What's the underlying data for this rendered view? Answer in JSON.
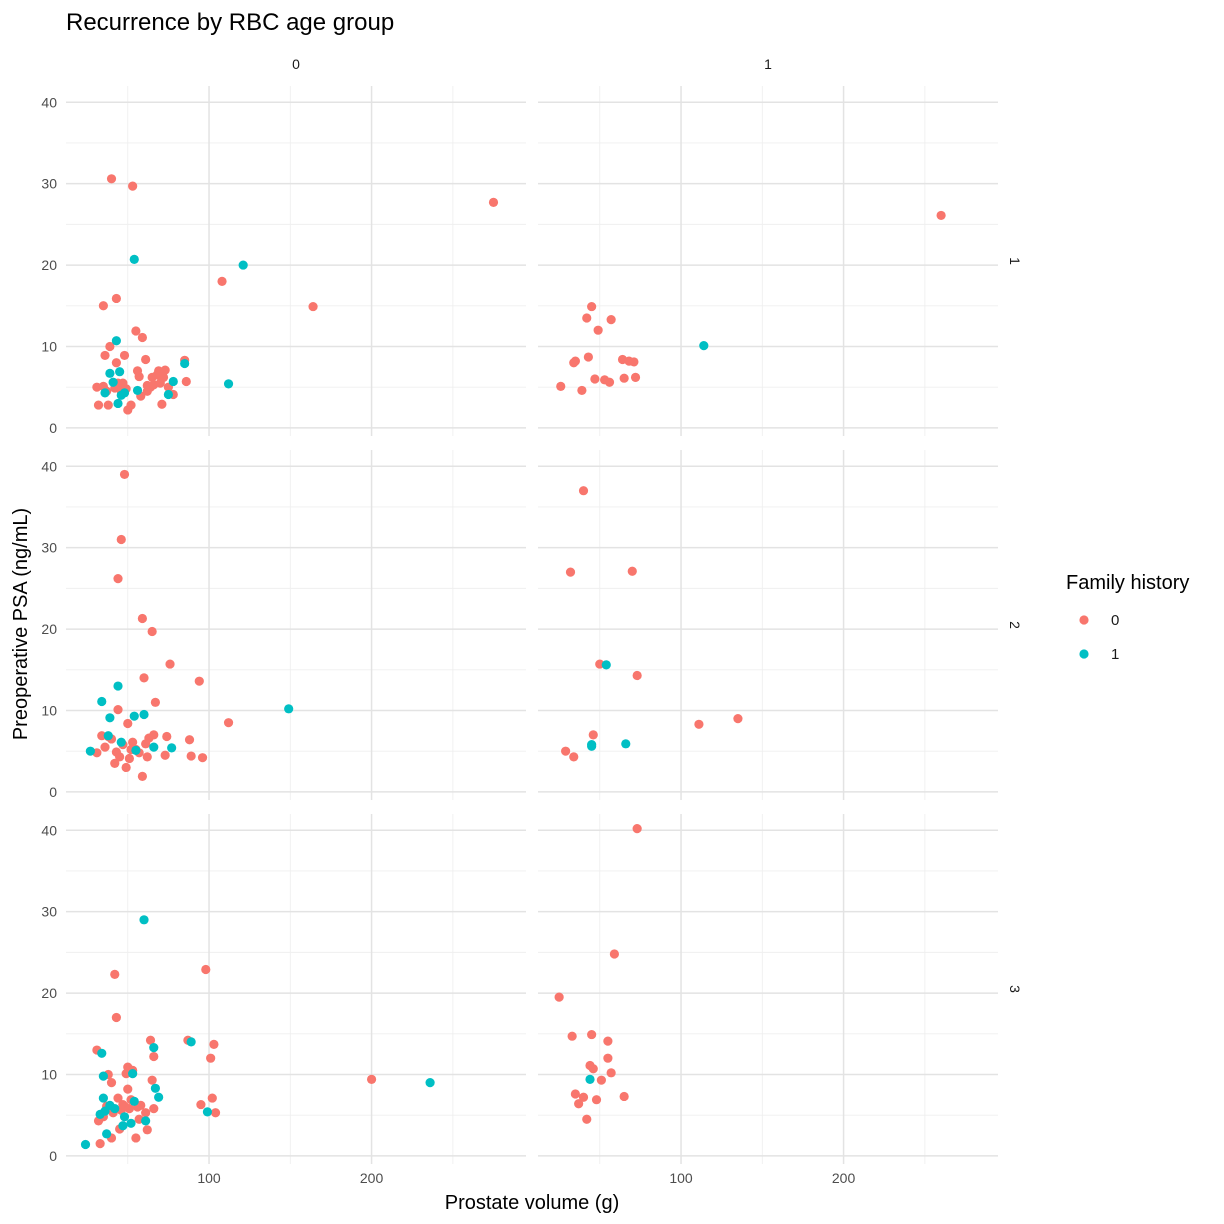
{
  "chart_data": {
    "type": "scatter",
    "title": "Recurrence by RBC age group",
    "xlabel": "Prostate volume (g)",
    "ylabel": "Preoperative PSA (ng/mL)",
    "xlim": [
      12,
      295
    ],
    "ylim": [
      -1,
      42
    ],
    "x_ticks": [
      100,
      200
    ],
    "y_ticks": [
      0,
      10,
      20,
      30,
      40
    ],
    "col_facet_labels": [
      "0",
      "1"
    ],
    "row_facet_labels": [
      "1",
      "2",
      "3"
    ],
    "grid": true,
    "legend": {
      "title": "Family history",
      "position": "right",
      "entries": [
        {
          "label": "0",
          "color": "#F8766D"
        },
        {
          "label": "1",
          "color": "#00BFC4"
        }
      ]
    },
    "panels": [
      {
        "row": "1",
        "col": "0",
        "series": [
          {
            "group": "0",
            "points": [
              [
                31,
                5
              ],
              [
                32,
                2.8
              ],
              [
                35,
                15
              ],
              [
                35,
                5.1
              ],
              [
                36,
                8.9
              ],
              [
                37,
                4.5
              ],
              [
                38,
                2.8
              ],
              [
                39,
                10
              ],
              [
                40,
                30.6
              ],
              [
                42,
                4.9
              ],
              [
                43,
                15.9
              ],
              [
                43,
                8
              ],
              [
                44,
                5.5
              ],
              [
                45,
                5
              ],
              [
                46,
                4.5
              ],
              [
                47,
                5.5
              ],
              [
                48,
                8.9
              ],
              [
                49,
                4.8
              ],
              [
                50,
                2.2
              ],
              [
                52,
                2.8
              ],
              [
                53,
                29.7
              ],
              [
                55,
                11.9
              ],
              [
                56,
                7
              ],
              [
                57,
                6.3
              ],
              [
                58,
                3.9
              ],
              [
                59,
                11.1
              ],
              [
                61,
                8.4
              ],
              [
                62,
                5.2
              ],
              [
                62,
                4.5
              ],
              [
                64,
                5
              ],
              [
                65,
                6.2
              ],
              [
                66,
                5.3
              ],
              [
                68,
                6.5
              ],
              [
                69,
                7
              ],
              [
                70,
                5.5
              ],
              [
                71,
                2.9
              ],
              [
                72,
                6.2
              ],
              [
                73,
                7.1
              ],
              [
                75,
                5
              ],
              [
                78,
                4.1
              ],
              [
                85,
                8.3
              ],
              [
                86,
                5.7
              ],
              [
                108,
                18
              ],
              [
                164,
                14.9
              ],
              [
                275,
                27.7
              ]
            ]
          },
          {
            "group": "1",
            "points": [
              [
                36,
                4.3
              ],
              [
                39,
                6.7
              ],
              [
                41,
                5.6
              ],
              [
                43,
                10.7
              ],
              [
                44,
                3
              ],
              [
                45,
                6.9
              ],
              [
                46,
                4
              ],
              [
                48,
                4.3
              ],
              [
                54,
                20.7
              ],
              [
                56,
                4.6
              ],
              [
                75,
                4.1
              ],
              [
                78,
                5.7
              ],
              [
                85,
                7.9
              ],
              [
                112,
                5.4
              ],
              [
                121,
                20
              ]
            ]
          }
        ]
      },
      {
        "row": "1",
        "col": "1",
        "series": [
          {
            "group": "0",
            "points": [
              [
                26,
                5.1
              ],
              [
                34,
                8
              ],
              [
                35,
                8.2
              ],
              [
                39,
                4.6
              ],
              [
                42,
                13.5
              ],
              [
                43,
                8.7
              ],
              [
                45,
                14.9
              ],
              [
                47,
                6
              ],
              [
                49,
                12
              ],
              [
                53,
                5.9
              ],
              [
                56,
                5.6
              ],
              [
                57,
                13.3
              ],
              [
                64,
                8.4
              ],
              [
                65,
                6.1
              ],
              [
                68,
                8.2
              ],
              [
                71,
                8.1
              ],
              [
                72,
                6.2
              ],
              [
                260,
                26.1
              ]
            ]
          },
          {
            "group": "1",
            "points": [
              [
                114,
                10.1
              ]
            ]
          }
        ]
      },
      {
        "row": "2",
        "col": "0",
        "series": [
          {
            "group": "0",
            "points": [
              [
                31,
                4.8
              ],
              [
                34,
                6.9
              ],
              [
                36,
                5.5
              ],
              [
                38,
                6.8
              ],
              [
                40,
                6.5
              ],
              [
                42,
                3.5
              ],
              [
                43,
                4.9
              ],
              [
                44,
                26.2
              ],
              [
                44,
                10.1
              ],
              [
                45,
                4.3
              ],
              [
                46,
                31
              ],
              [
                47,
                5.8
              ],
              [
                48,
                39
              ],
              [
                49,
                3
              ],
              [
                50,
                8.4
              ],
              [
                51,
                4.1
              ],
              [
                52,
                5.2
              ],
              [
                53,
                6.1
              ],
              [
                55,
                5.2
              ],
              [
                57,
                4.8
              ],
              [
                59,
                21.3
              ],
              [
                59,
                1.9
              ],
              [
                60,
                14
              ],
              [
                61,
                5.9
              ],
              [
                62,
                4.3
              ],
              [
                63,
                6.6
              ],
              [
                65,
                19.7
              ],
              [
                66,
                7
              ],
              [
                67,
                11
              ],
              [
                73,
                4.5
              ],
              [
                74,
                6.8
              ],
              [
                76,
                15.7
              ],
              [
                88,
                6.4
              ],
              [
                89,
                4.4
              ],
              [
                94,
                13.6
              ],
              [
                96,
                4.2
              ],
              [
                112,
                8.5
              ]
            ]
          },
          {
            "group": "1",
            "points": [
              [
                27,
                5
              ],
              [
                34,
                11.1
              ],
              [
                38,
                6.9
              ],
              [
                39,
                9.1
              ],
              [
                44,
                13
              ],
              [
                46,
                6.1
              ],
              [
                54,
                9.3
              ],
              [
                55,
                5.1
              ],
              [
                60,
                9.5
              ],
              [
                66,
                5.5
              ],
              [
                77,
                5.4
              ],
              [
                149,
                10.2
              ]
            ]
          }
        ]
      },
      {
        "row": "2",
        "col": "1",
        "series": [
          {
            "group": "0",
            "points": [
              [
                29,
                5
              ],
              [
                32,
                27
              ],
              [
                34,
                4.3
              ],
              [
                40,
                37
              ],
              [
                46,
                7
              ],
              [
                50,
                15.7
              ],
              [
                70,
                27.1
              ],
              [
                73,
                14.3
              ],
              [
                111,
                8.3
              ],
              [
                135,
                9
              ]
            ]
          },
          {
            "group": "1",
            "points": [
              [
                45,
                5.6
              ],
              [
                45,
                5.8
              ],
              [
                54,
                15.6
              ],
              [
                66,
                5.9
              ]
            ]
          }
        ]
      },
      {
        "row": "3",
        "col": "0",
        "series": [
          {
            "group": "0",
            "points": [
              [
                31,
                13
              ],
              [
                32,
                4.3
              ],
              [
                33,
                1.5
              ],
              [
                35,
                4.8
              ],
              [
                37,
                6.1
              ],
              [
                38,
                10
              ],
              [
                40,
                9
              ],
              [
                40,
                2.2
              ],
              [
                41,
                5.3
              ],
              [
                42,
                22.3
              ],
              [
                43,
                17
              ],
              [
                44,
                7.1
              ],
              [
                45,
                3.3
              ],
              [
                46,
                5.6
              ],
              [
                47,
                6.3
              ],
              [
                48,
                6.1
              ],
              [
                49,
                10.1
              ],
              [
                50,
                10.9
              ],
              [
                50,
                8.2
              ],
              [
                51,
                5.8
              ],
              [
                52,
                6.9
              ],
              [
                53,
                10.5
              ],
              [
                55,
                2.2
              ],
              [
                56,
                6
              ],
              [
                57,
                4.5
              ],
              [
                58,
                6.2
              ],
              [
                61,
                5.3
              ],
              [
                62,
                3.2
              ],
              [
                64,
                14.2
              ],
              [
                65,
                9.3
              ],
              [
                66,
                12.2
              ],
              [
                66,
                5.8
              ],
              [
                87,
                14.2
              ],
              [
                95,
                6.3
              ],
              [
                98,
                22.9
              ],
              [
                101,
                12
              ],
              [
                102,
                7.1
              ],
              [
                103,
                13.7
              ],
              [
                104,
                5.3
              ],
              [
                200,
                9.4
              ]
            ]
          },
          {
            "group": "1",
            "points": [
              [
                24,
                1.4
              ],
              [
                33,
                5.1
              ],
              [
                34,
                12.6
              ],
              [
                35,
                9.8
              ],
              [
                35,
                7.1
              ],
              [
                36,
                5.5
              ],
              [
                37,
                2.7
              ],
              [
                39,
                6.2
              ],
              [
                42,
                5.8
              ],
              [
                47,
                3.7
              ],
              [
                48,
                4.8
              ],
              [
                52,
                4
              ],
              [
                53,
                10.1
              ],
              [
                54,
                6.7
              ],
              [
                60,
                29
              ],
              [
                61,
                4.3
              ],
              [
                66,
                13.3
              ],
              [
                67,
                8.3
              ],
              [
                69,
                7.2
              ],
              [
                89,
                14
              ],
              [
                99,
                5.4
              ],
              [
                236,
                9
              ]
            ]
          }
        ]
      },
      {
        "row": "3",
        "col": "1",
        "series": [
          {
            "group": "0",
            "points": [
              [
                25,
                19.5
              ],
              [
                33,
                14.7
              ],
              [
                35,
                7.6
              ],
              [
                37,
                6.4
              ],
              [
                40,
                7.2
              ],
              [
                42,
                4.5
              ],
              [
                44,
                11.1
              ],
              [
                45,
                14.9
              ],
              [
                46,
                10.7
              ],
              [
                48,
                6.9
              ],
              [
                51,
                9.3
              ],
              [
                55,
                14.1
              ],
              [
                55,
                12
              ],
              [
                57,
                10.2
              ],
              [
                59,
                24.8
              ],
              [
                65,
                7.3
              ],
              [
                73,
                40.2
              ]
            ]
          },
          {
            "group": "1",
            "points": [
              [
                44,
                9.4
              ]
            ]
          }
        ]
      }
    ]
  }
}
